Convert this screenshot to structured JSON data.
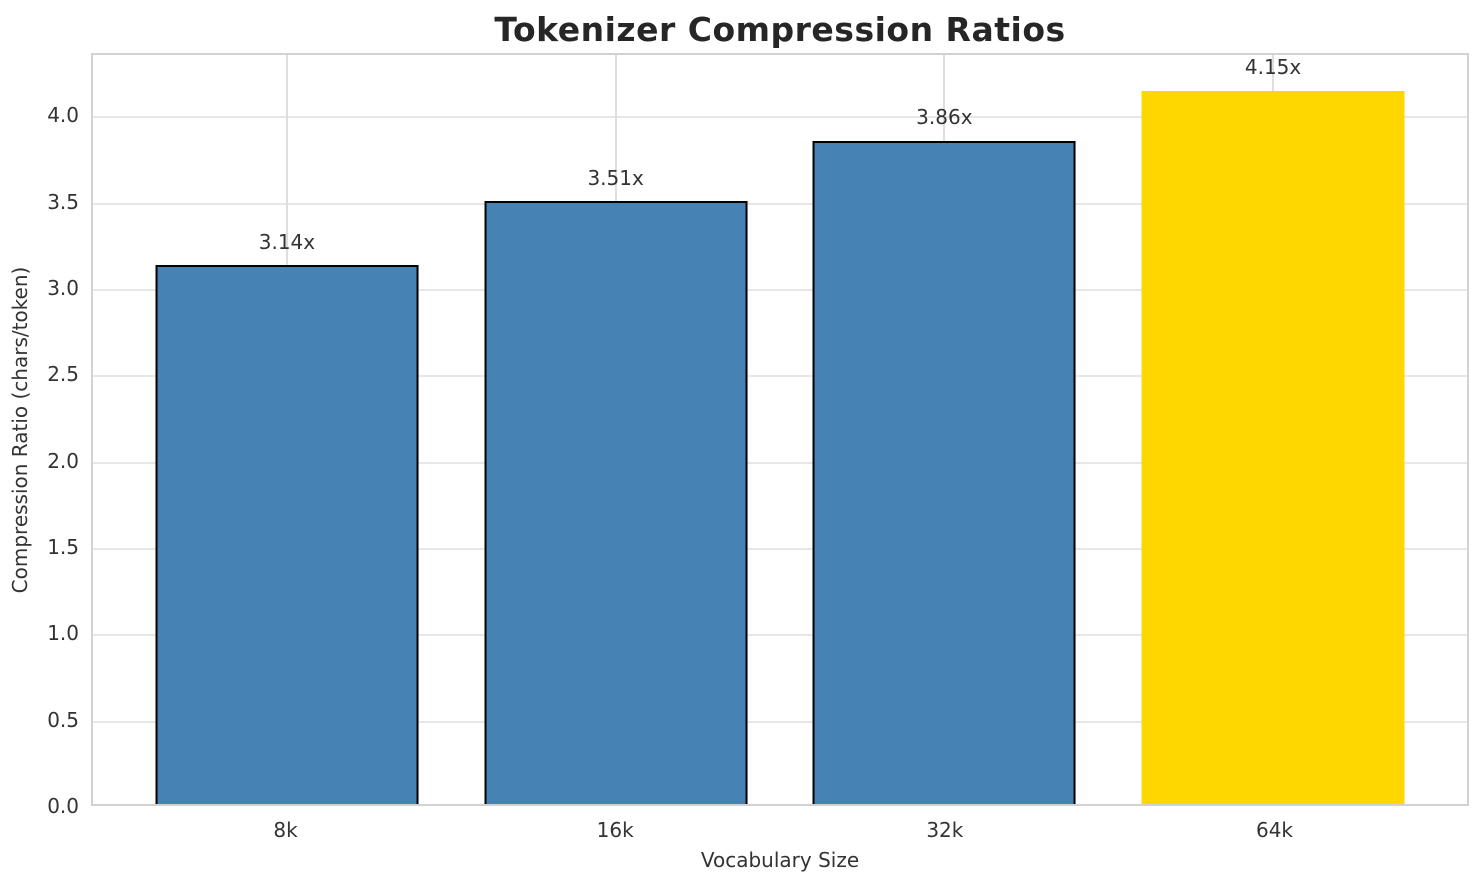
{
  "chart_data": {
    "type": "bar",
    "title": "Tokenizer Compression Ratios",
    "xlabel": "Vocabulary Size",
    "ylabel": "Compression Ratio (chars/token)",
    "categories": [
      "8k",
      "16k",
      "32k",
      "64k"
    ],
    "values": [
      3.14,
      3.51,
      3.86,
      4.15
    ],
    "bar_labels": [
      "3.14x",
      "3.51x",
      "3.86x",
      "4.15x"
    ],
    "bar_colors": [
      "#4682b4",
      "#4682b4",
      "#4682b4",
      "#ffd700"
    ],
    "bar_edges": [
      true,
      true,
      true,
      false
    ],
    "yticks": [
      0.0,
      0.5,
      1.0,
      1.5,
      2.0,
      2.5,
      3.0,
      3.5,
      4.0
    ],
    "ytick_labels": [
      "0.0",
      "0.5",
      "1.0",
      "1.5",
      "2.0",
      "2.5",
      "3.0",
      "3.5",
      "4.0"
    ],
    "ylim": [
      0,
      4.36
    ],
    "grid": true,
    "legend_position": "none"
  },
  "colors": {
    "bar_blue": "#4682b4",
    "bar_gold": "#ffd700",
    "bar_edge": "#000000",
    "gridline": "#e3e3e3",
    "spine": "#d2d2d2",
    "title_text": "#262626",
    "label_text": "#333333"
  }
}
